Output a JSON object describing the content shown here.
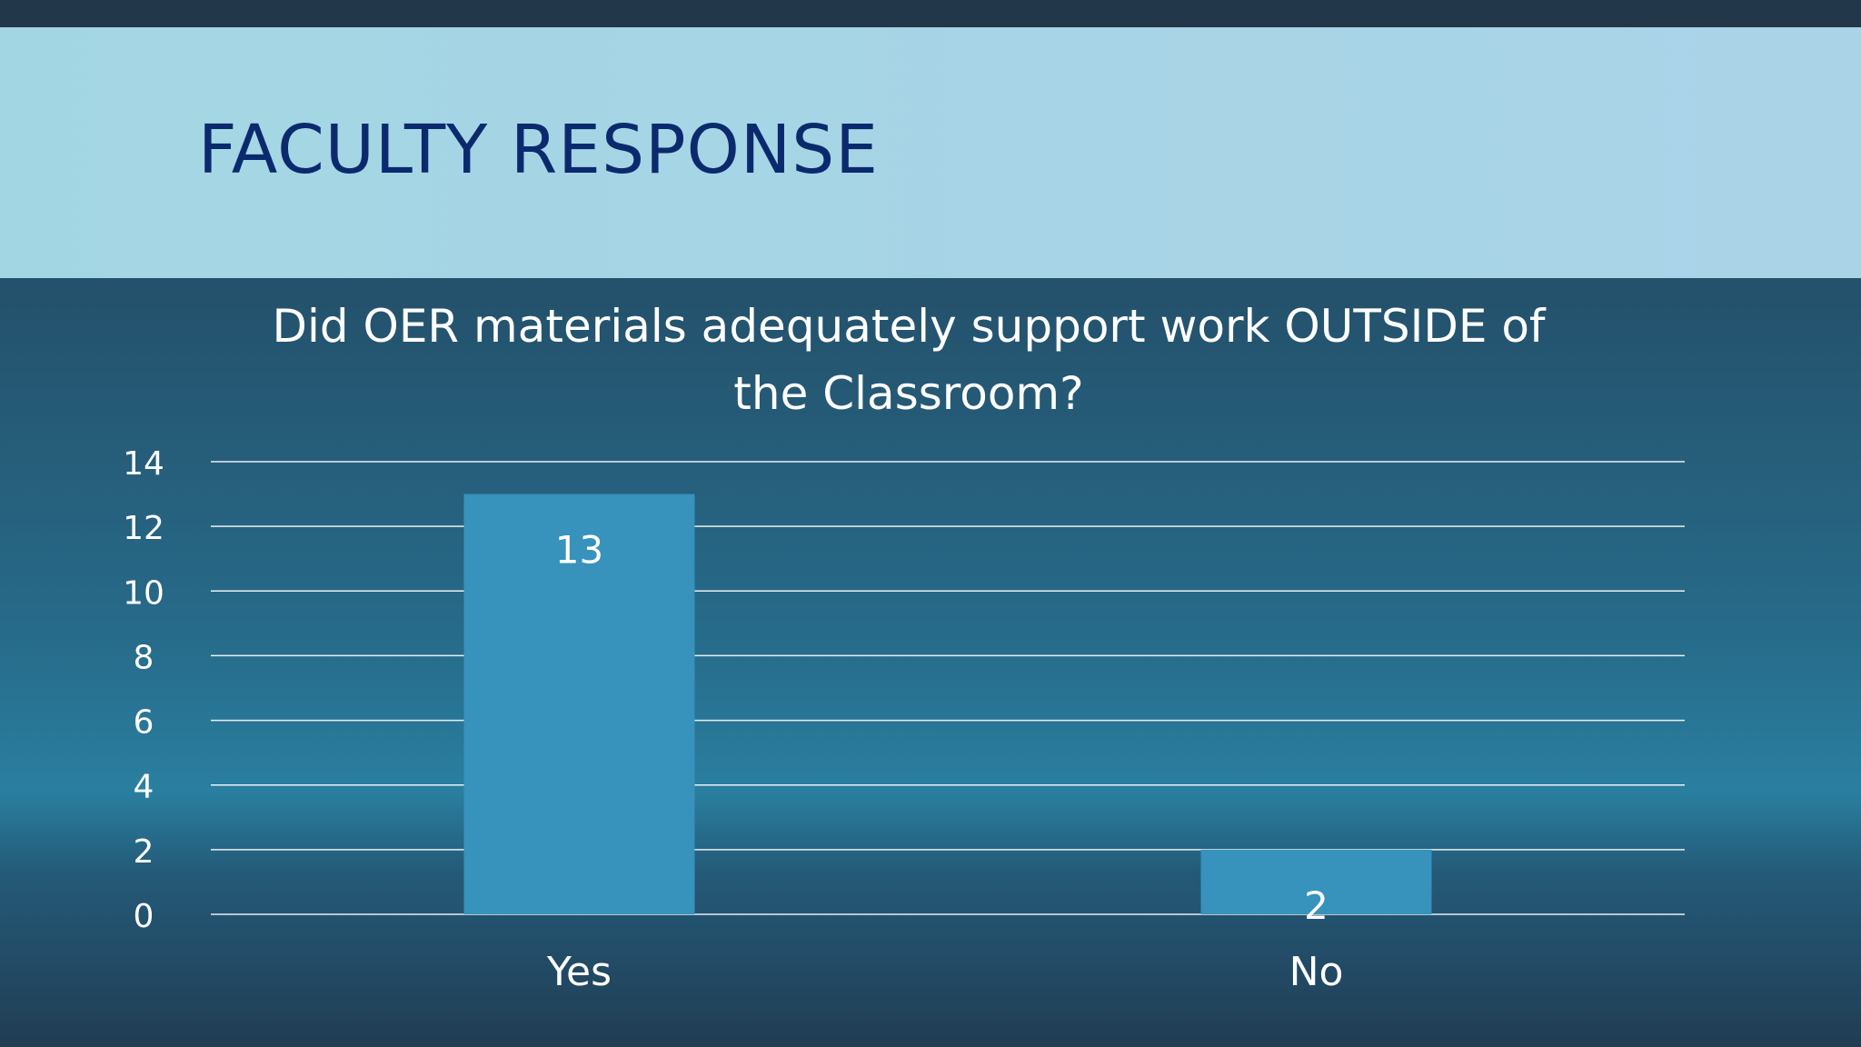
{
  "slide": {
    "title": "FACULTY RESPONSE"
  },
  "colors": {
    "title_band": "#a8d5e6",
    "title_text": "#0b2a6e",
    "bar": "#3792bc",
    "gridline": "#ffffff",
    "text": "#ffffff"
  },
  "chart_data": {
    "type": "bar",
    "title_line1": "Did OER materials adequately support work OUTSIDE of",
    "title_line2": "the Classroom?",
    "categories": [
      "Yes",
      "No"
    ],
    "values": [
      13,
      2
    ],
    "data_labels": [
      "13",
      "2"
    ],
    "ylim": [
      0,
      14
    ],
    "yticks": [
      "0",
      "2",
      "4",
      "6",
      "8",
      "10",
      "12",
      "14"
    ],
    "xlabel": "",
    "ylabel": "",
    "grid": true,
    "legend": "none"
  }
}
